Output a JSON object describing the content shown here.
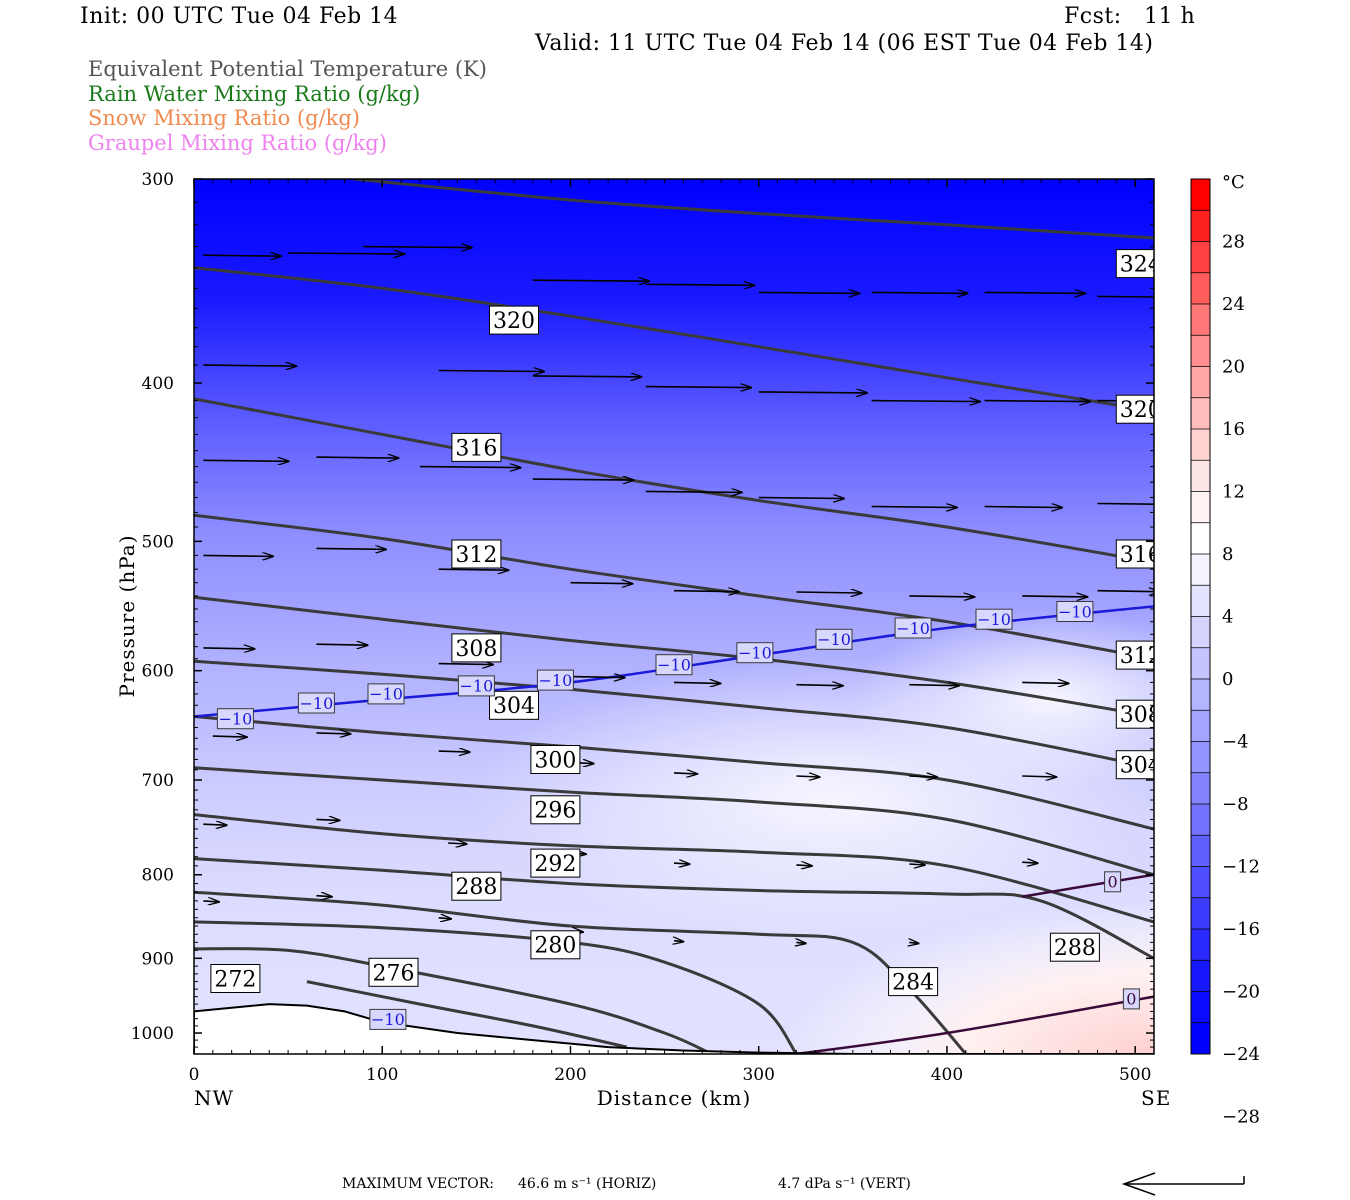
{
  "header": {
    "init": "Init: 00 UTC Tue 04 Feb 14",
    "fcst": "Fcst:   11 h",
    "valid": "Valid: 11 UTC Tue 04 Feb 14 (06 EST Tue 04 Feb 14)"
  },
  "legend": [
    {
      "label": "Equivalent Potential Temperature (K)",
      "color": "#555555"
    },
    {
      "label": "Rain Water Mixing Ratio (g/kg)",
      "color": "#1a7a1a"
    },
    {
      "label": "Snow Mixing Ratio (g/kg)",
      "color": "#f08a50"
    },
    {
      "label": "Graupel Mixing Ratio (g/kg)",
      "color": "#ee82ee"
    }
  ],
  "footer": {
    "max_vector_label": "MAXIMUM VECTOR:",
    "horiz": "46.6 m s⁻¹ (HORIZ)",
    "vert": "4.7 dPa s⁻¹ (VERT)"
  },
  "chart_data": {
    "type": "contour",
    "xlabel": "Distance (km)",
    "ylabel": "Pressure (hPa)",
    "xlim": [
      0,
      510
    ],
    "ylim": [
      1030,
      300
    ],
    "x_ticks": [
      0,
      100,
      200,
      300,
      400,
      500
    ],
    "y_ticks": [
      300,
      400,
      500,
      600,
      700,
      800,
      900,
      1000
    ],
    "x_endpoints": {
      "left": "NW",
      "right": "SE"
    },
    "colorbar": {
      "unit": "°C",
      "tick_labels": [
        "28",
        "24",
        "20",
        "16",
        "12",
        "8",
        "4",
        "0",
        "−4",
        "−8",
        "−12",
        "−16",
        "−20",
        "−24",
        "−28"
      ],
      "colors_top_to_bottom": [
        "#ff0000",
        "#ff2020",
        "#ff4040",
        "#ff5c5c",
        "#ff7878",
        "#ff8f8f",
        "#ffa6a6",
        "#ffbdbd",
        "#ffd2d2",
        "#ffe6e6",
        "#fff2f2",
        "#ffffff",
        "#f4f4ff",
        "#e4e4ff",
        "#d4d4ff",
        "#c4c4ff",
        "#b4b4ff",
        "#a4a4ff",
        "#9494ff",
        "#8484ff",
        "#7272ff",
        "#6060ff",
        "#4e4eff",
        "#3c3cff",
        "#2a2aff",
        "#1818ff",
        "#0a0aff",
        "#0000ff"
      ]
    },
    "theta_e_contours": [
      {
        "value": "324",
        "points": [
          [
            85,
            300
          ],
          [
            200,
            309
          ],
          [
            300,
            315
          ],
          [
            400,
            320
          ],
          [
            510,
            326
          ]
        ]
      },
      {
        "value": "320",
        "points": [
          [
            0,
            340
          ],
          [
            100,
            350
          ],
          [
            200,
            364
          ],
          [
            300,
            380
          ],
          [
            400,
            397
          ],
          [
            510,
            416
          ]
        ]
      },
      {
        "value": "316",
        "points": [
          [
            0,
            409
          ],
          [
            100,
            430
          ],
          [
            200,
            452
          ],
          [
            300,
            472
          ],
          [
            400,
            490
          ],
          [
            510,
            515
          ]
        ]
      },
      {
        "value": "312",
        "points": [
          [
            0,
            482
          ],
          [
            100,
            498
          ],
          [
            200,
            520
          ],
          [
            300,
            540
          ],
          [
            400,
            560
          ],
          [
            510,
            590
          ]
        ]
      },
      {
        "value": "308",
        "points": [
          [
            0,
            541
          ],
          [
            100,
            558
          ],
          [
            200,
            575
          ],
          [
            300,
            590
          ],
          [
            400,
            610
          ],
          [
            510,
            640
          ]
        ]
      },
      {
        "value": "304",
        "points": [
          [
            0,
            592
          ],
          [
            100,
            603
          ],
          [
            200,
            616
          ],
          [
            300,
            632
          ],
          [
            400,
            650
          ],
          [
            510,
            688
          ]
        ]
      },
      {
        "value": "300",
        "points": [
          [
            0,
            640
          ],
          [
            100,
            655
          ],
          [
            200,
            668
          ],
          [
            300,
            683
          ],
          [
            400,
            700
          ],
          [
            510,
            750
          ]
        ]
      },
      {
        "value": "296",
        "points": [
          [
            0,
            688
          ],
          [
            100,
            700
          ],
          [
            200,
            712
          ],
          [
            300,
            722
          ],
          [
            400,
            740
          ],
          [
            510,
            800
          ]
        ]
      },
      {
        "value": "292",
        "points": [
          [
            0,
            735
          ],
          [
            100,
            755
          ],
          [
            200,
            768
          ],
          [
            300,
            775
          ],
          [
            400,
            790
          ],
          [
            510,
            855
          ]
        ]
      },
      {
        "value": "288",
        "points": [
          [
            0,
            782
          ],
          [
            100,
            795
          ],
          [
            200,
            810
          ],
          [
            300,
            818
          ],
          [
            400,
            822
          ],
          [
            450,
            830
          ],
          [
            510,
            900
          ]
        ]
      },
      {
        "value": "284",
        "points": [
          [
            0,
            820
          ],
          [
            100,
            835
          ],
          [
            200,
            860
          ],
          [
            300,
            870
          ],
          [
            350,
            880
          ],
          [
            380,
            940
          ],
          [
            410,
            1030
          ]
        ]
      },
      {
        "value": "280",
        "points": [
          [
            0,
            855
          ],
          [
            100,
            862
          ],
          [
            200,
            880
          ],
          [
            250,
            905
          ],
          [
            300,
            960
          ],
          [
            320,
            1030
          ]
        ]
      },
      {
        "value": "276",
        "points": [
          [
            0,
            888
          ],
          [
            50,
            890
          ],
          [
            100,
            910
          ],
          [
            200,
            960
          ],
          [
            250,
            1000
          ],
          [
            275,
            1030
          ]
        ]
      },
      {
        "value": "272",
        "points": [
          [
            60,
            930
          ],
          [
            120,
            960
          ],
          [
            180,
            990
          ],
          [
            230,
            1020
          ]
        ]
      }
    ],
    "temperature_contours": [
      {
        "value": "-10",
        "points": [
          [
            0,
            640
          ],
          [
            100,
            625
          ],
          [
            200,
            610
          ],
          [
            300,
            587
          ],
          [
            400,
            565
          ],
          [
            510,
            548
          ]
        ]
      },
      {
        "value": "0",
        "points": [
          [
            320,
            1030
          ],
          [
            400,
            1000
          ],
          [
            510,
            950
          ]
        ]
      },
      {
        "value": "0",
        "points": [
          [
            440,
            825
          ],
          [
            510,
            800
          ]
        ]
      }
    ],
    "theta_e_labels": [
      {
        "text": "324",
        "x": 503,
        "p": 338
      },
      {
        "text": "320",
        "x": 170,
        "p": 366
      },
      {
        "text": "320",
        "x": 503,
        "p": 415
      },
      {
        "text": "316",
        "x": 150,
        "p": 438
      },
      {
        "text": "316",
        "x": 503,
        "p": 509
      },
      {
        "text": "312",
        "x": 150,
        "p": 509
      },
      {
        "text": "312",
        "x": 503,
        "p": 587
      },
      {
        "text": "308",
        "x": 150,
        "p": 581
      },
      {
        "text": "308",
        "x": 503,
        "p": 638
      },
      {
        "text": "304",
        "x": 170,
        "p": 630
      },
      {
        "text": "304",
        "x": 503,
        "p": 685
      },
      {
        "text": "300",
        "x": 192,
        "p": 680
      },
      {
        "text": "296",
        "x": 192,
        "p": 730
      },
      {
        "text": "292",
        "x": 192,
        "p": 787
      },
      {
        "text": "288",
        "x": 150,
        "p": 813
      },
      {
        "text": "288",
        "x": 468,
        "p": 886
      },
      {
        "text": "284",
        "x": 382,
        "p": 930
      },
      {
        "text": "280",
        "x": 192,
        "p": 883
      },
      {
        "text": "276",
        "x": 106,
        "p": 918
      },
      {
        "text": "272",
        "x": 22,
        "p": 926
      }
    ],
    "temp_labels": [
      {
        "text": "−10",
        "x": 22,
        "p": 642
      },
      {
        "text": "−10",
        "x": 65,
        "p": 628
      },
      {
        "text": "−10",
        "x": 102,
        "p": 620
      },
      {
        "text": "−10",
        "x": 150,
        "p": 613
      },
      {
        "text": "−10",
        "x": 192,
        "p": 608
      },
      {
        "text": "−10",
        "x": 255,
        "p": 595
      },
      {
        "text": "−10",
        "x": 298,
        "p": 585
      },
      {
        "text": "−10",
        "x": 340,
        "p": 574
      },
      {
        "text": "−10",
        "x": 382,
        "p": 565
      },
      {
        "text": "−10",
        "x": 425,
        "p": 558
      },
      {
        "text": "−10",
        "x": 468,
        "p": 552
      },
      {
        "text": "−10",
        "x": 103,
        "p": 981
      },
      {
        "text": "0",
        "x": 488,
        "p": 808
      },
      {
        "text": "0",
        "x": 498,
        "p": 953
      }
    ],
    "wind_vectors": [
      {
        "x": 5,
        "p": 334,
        "u": 50
      },
      {
        "x": 50,
        "p": 333,
        "u": 75
      },
      {
        "x": 90,
        "p": 330,
        "u": 70
      },
      {
        "x": 180,
        "p": 346,
        "u": 75
      },
      {
        "x": 240,
        "p": 348,
        "u": 70
      },
      {
        "x": 300,
        "p": 352,
        "u": 65
      },
      {
        "x": 360,
        "p": 352,
        "u": 62
      },
      {
        "x": 420,
        "p": 352,
        "u": 65
      },
      {
        "x": 480,
        "p": 354,
        "u": 62
      },
      {
        "x": 5,
        "p": 390,
        "u": 60
      },
      {
        "x": 130,
        "p": 393,
        "u": 68
      },
      {
        "x": 180,
        "p": 396,
        "u": 70
      },
      {
        "x": 240,
        "p": 402,
        "u": 68
      },
      {
        "x": 300,
        "p": 405,
        "u": 70
      },
      {
        "x": 360,
        "p": 410,
        "u": 70
      },
      {
        "x": 420,
        "p": 410,
        "u": 68
      },
      {
        "x": 480,
        "p": 410,
        "u": 65
      },
      {
        "x": 5,
        "p": 446,
        "u": 55
      },
      {
        "x": 65,
        "p": 444,
        "u": 53
      },
      {
        "x": 120,
        "p": 450,
        "u": 65
      },
      {
        "x": 180,
        "p": 458,
        "u": 65
      },
      {
        "x": 240,
        "p": 466,
        "u": 62
      },
      {
        "x": 300,
        "p": 470,
        "u": 55
      },
      {
        "x": 360,
        "p": 476,
        "u": 55
      },
      {
        "x": 420,
        "p": 476,
        "u": 50
      },
      {
        "x": 480,
        "p": 474,
        "u": 55
      },
      {
        "x": 5,
        "p": 510,
        "u": 45
      },
      {
        "x": 65,
        "p": 505,
        "u": 45
      },
      {
        "x": 130,
        "p": 520,
        "u": 45
      },
      {
        "x": 200,
        "p": 530,
        "u": 40
      },
      {
        "x": 255,
        "p": 536,
        "u": 42
      },
      {
        "x": 320,
        "p": 537,
        "u": 42
      },
      {
        "x": 380,
        "p": 540,
        "u": 42
      },
      {
        "x": 440,
        "p": 540,
        "u": 42
      },
      {
        "x": 480,
        "p": 536,
        "u": 40
      },
      {
        "x": 5,
        "p": 581,
        "u": 33
      },
      {
        "x": 65,
        "p": 578,
        "u": 33
      },
      {
        "x": 130,
        "p": 594,
        "u": 35
      },
      {
        "x": 200,
        "p": 605,
        "u": 35
      },
      {
        "x": 255,
        "p": 610,
        "u": 30
      },
      {
        "x": 320,
        "p": 612,
        "u": 30
      },
      {
        "x": 380,
        "p": 612,
        "u": 32
      },
      {
        "x": 440,
        "p": 610,
        "u": 30
      },
      {
        "x": 10,
        "p": 658,
        "u": 22
      },
      {
        "x": 65,
        "p": 655,
        "u": 22
      },
      {
        "x": 130,
        "p": 672,
        "u": 20
      },
      {
        "x": 200,
        "p": 683,
        "u": 15
      },
      {
        "x": 255,
        "p": 693,
        "u": 15
      },
      {
        "x": 320,
        "p": 696,
        "u": 15
      },
      {
        "x": 380,
        "p": 696,
        "u": 18
      },
      {
        "x": 440,
        "p": 696,
        "u": 22
      },
      {
        "x": 5,
        "p": 745,
        "u": 15
      },
      {
        "x": 65,
        "p": 740,
        "u": 15
      },
      {
        "x": 135,
        "p": 765,
        "u": 12
      },
      {
        "x": 200,
        "p": 776,
        "u": 10
      },
      {
        "x": 255,
        "p": 787,
        "u": 10
      },
      {
        "x": 320,
        "p": 789,
        "u": 10
      },
      {
        "x": 380,
        "p": 788,
        "u": 10
      },
      {
        "x": 440,
        "p": 786,
        "u": 10
      },
      {
        "x": 5,
        "p": 830,
        "u": 10
      },
      {
        "x": 65,
        "p": 824,
        "u": 10
      },
      {
        "x": 130,
        "p": 850,
        "u": 8
      },
      {
        "x": 200,
        "p": 866,
        "u": 8
      },
      {
        "x": 255,
        "p": 878,
        "u": 6
      },
      {
        "x": 320,
        "p": 880,
        "u": 6
      },
      {
        "x": 380,
        "p": 880,
        "u": 6
      }
    ],
    "terrain": [
      [
        0,
        970
      ],
      [
        20,
        965
      ],
      [
        40,
        960
      ],
      [
        60,
        962
      ],
      [
        80,
        970
      ],
      [
        100,
        985
      ],
      [
        140,
        1000
      ],
      [
        180,
        1010
      ],
      [
        220,
        1020
      ],
      [
        260,
        1025
      ],
      [
        300,
        1028
      ],
      [
        350,
        1030
      ],
      [
        510,
        1030
      ]
    ]
  }
}
